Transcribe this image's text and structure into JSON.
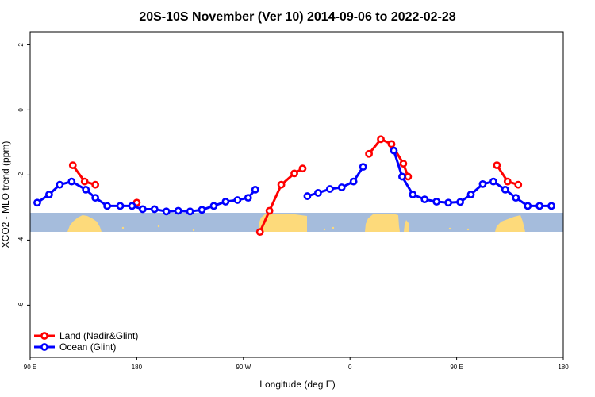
{
  "chart_data": {
    "type": "line",
    "title": "20S-10S November (Ver 10)   2014-09-06 to 2022-02-28",
    "xlabel": "Longitude (deg E)",
    "ylabel": "XCO2 - MLO trend (ppm)",
    "xlim": [
      90,
      540
    ],
    "ylim": [
      -7.6,
      2.4
    ],
    "x_ticks": [
      {
        "value": 90,
        "label": "90 E"
      },
      {
        "value": 180,
        "label": "180"
      },
      {
        "value": 270,
        "label": "90 W"
      },
      {
        "value": 360,
        "label": "0"
      },
      {
        "value": 450,
        "label": "90 E"
      },
      {
        "value": 540,
        "label": "180"
      }
    ],
    "y_ticks": [
      {
        "value": 2,
        "label": "2"
      },
      {
        "value": 0,
        "label": "0"
      },
      {
        "value": -2,
        "label": "-2"
      },
      {
        "value": -4,
        "label": "-4"
      },
      {
        "value": -6,
        "label": "-6"
      }
    ],
    "map_strip": {
      "lat_range": [
        -20,
        -10
      ],
      "ocean_color": "#a5bcdc",
      "land_color": "#fdda7b"
    },
    "legend_position": "bottom-left",
    "series": [
      {
        "name": "Land (Nadir&Glint)",
        "color": "#ff0000",
        "segments": [
          [
            [
              126,
              -1.7
            ],
            [
              136,
              -2.2
            ],
            [
              145,
              -2.3
            ]
          ],
          [
            [
              180,
              -2.85
            ]
          ],
          [
            [
              284,
              -3.75
            ],
            [
              292,
              -3.1
            ],
            [
              302,
              -2.3
            ],
            [
              313,
              -1.95
            ],
            [
              320,
              -1.8
            ]
          ],
          [
            [
              376,
              -1.35
            ],
            [
              386,
              -0.9
            ],
            [
              395,
              -1.05
            ],
            [
              405,
              -1.65
            ],
            [
              409,
              -2.05
            ]
          ],
          [
            [
              484,
              -1.7
            ],
            [
              493,
              -2.2
            ],
            [
              502,
              -2.3
            ]
          ]
        ]
      },
      {
        "name": "Ocean (Glint)",
        "color": "#0000ff",
        "segments": [
          [
            [
              96,
              -2.85
            ],
            [
              106,
              -2.6
            ],
            [
              115,
              -2.3
            ],
            [
              125,
              -2.2
            ],
            [
              137,
              -2.45
            ],
            [
              145,
              -2.7
            ],
            [
              155,
              -2.95
            ],
            [
              166,
              -2.95
            ],
            [
              176,
              -2.95
            ],
            [
              185,
              -3.05
            ],
            [
              195,
              -3.05
            ],
            [
              205,
              -3.12
            ],
            [
              215,
              -3.1
            ],
            [
              225,
              -3.12
            ],
            [
              235,
              -3.07
            ],
            [
              245,
              -2.95
            ],
            [
              255,
              -2.82
            ],
            [
              265,
              -2.77
            ],
            [
              274,
              -2.7
            ],
            [
              280,
              -2.45
            ]
          ],
          [
            [
              324,
              -2.65
            ],
            [
              333,
              -2.55
            ],
            [
              343,
              -2.43
            ],
            [
              353,
              -2.38
            ],
            [
              363,
              -2.2
            ],
            [
              371,
              -1.75
            ]
          ],
          [
            [
              397,
              -1.25
            ],
            [
              404,
              -2.05
            ],
            [
              413,
              -2.6
            ],
            [
              423,
              -2.75
            ],
            [
              433,
              -2.82
            ],
            [
              443,
              -2.85
            ],
            [
              453,
              -2.83
            ],
            [
              462,
              -2.6
            ],
            [
              472,
              -2.28
            ],
            [
              481,
              -2.2
            ],
            [
              491,
              -2.45
            ],
            [
              500,
              -2.7
            ],
            [
              510,
              -2.95
            ],
            [
              520,
              -2.95
            ],
            [
              530,
              -2.95
            ]
          ]
        ]
      }
    ]
  }
}
